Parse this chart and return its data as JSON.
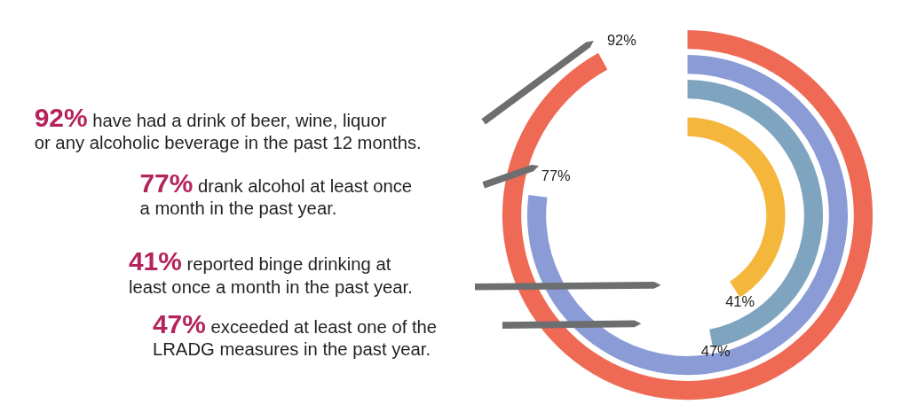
{
  "chart_data": {
    "type": "other",
    "categories": [
      "have had a drink of beer, wine, liquor\nor any alcoholic beverage in the past 12 months.",
      "drank alcohol at least once\na month in the past year.",
      "reported binge drinking at\nleast once a month in the past year.",
      "exceeded at least one of the\nLRADG measures in the past year."
    ],
    "values": [
      92,
      77,
      41,
      47
    ],
    "value_labels": [
      "92%",
      "77%",
      "41%",
      "47%"
    ],
    "colors": [
      "#ee6a55",
      "#8a9bd6",
      "#f4b73c",
      "#7fa4bf"
    ]
  }
}
